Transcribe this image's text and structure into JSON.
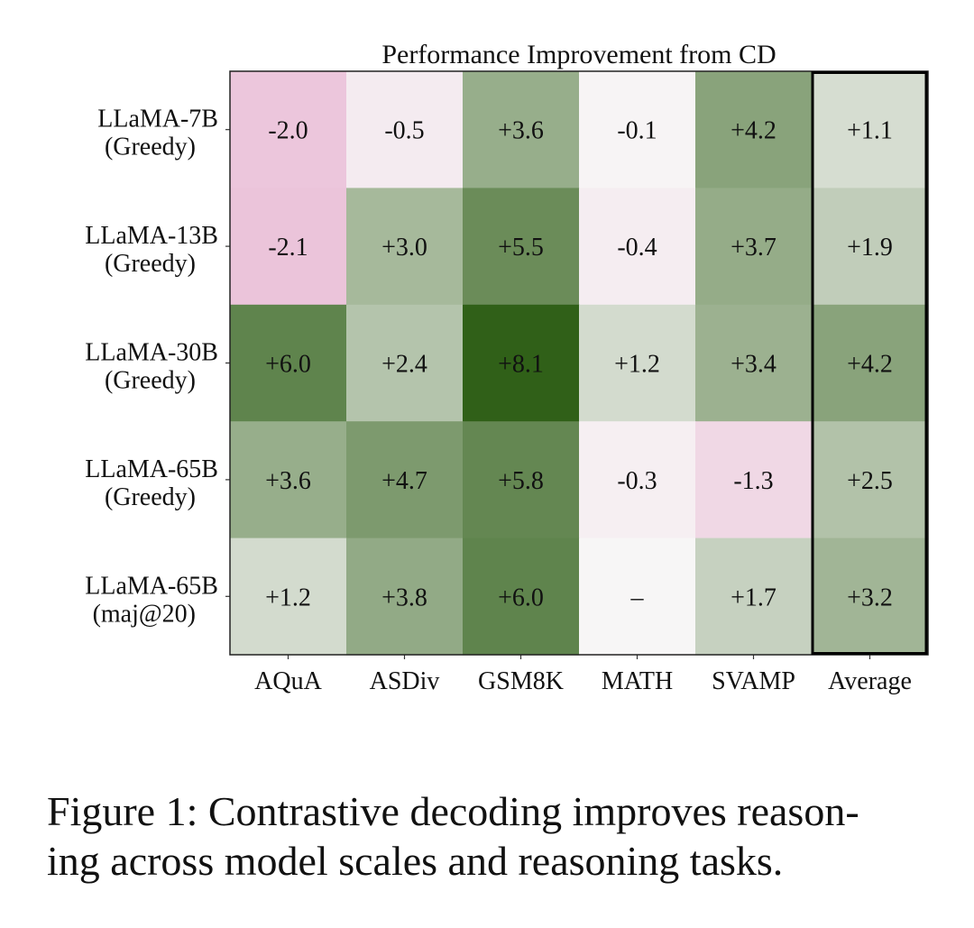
{
  "chart_data": {
    "type": "heatmap",
    "title": "Performance Improvement from CD",
    "columns": [
      "AQuA",
      "ASDiv",
      "GSM8K",
      "MATH",
      "SVAMP",
      "Average"
    ],
    "rows": [
      {
        "name": "LLaMA-7B",
        "setting": "(Greedy)"
      },
      {
        "name": "LLaMA-13B",
        "setting": "(Greedy)"
      },
      {
        "name": "LLaMA-30B",
        "setting": "(Greedy)"
      },
      {
        "name": "LLaMA-65B",
        "setting": "(Greedy)"
      },
      {
        "name": "LLaMA-65B",
        "setting": "(maj@20)"
      }
    ],
    "values": [
      [
        -2.0,
        -0.5,
        3.6,
        -0.1,
        4.2,
        1.1
      ],
      [
        -2.1,
        3.0,
        5.5,
        -0.4,
        3.7,
        1.9
      ],
      [
        6.0,
        2.4,
        8.1,
        1.2,
        3.4,
        4.2
      ],
      [
        3.6,
        4.7,
        5.8,
        -0.3,
        -1.3,
        2.5
      ],
      [
        1.2,
        3.8,
        6.0,
        null,
        1.7,
        3.2
      ]
    ],
    "labels": [
      [
        "-2.0",
        "-0.5",
        "+3.6",
        "-0.1",
        "+4.2",
        "+1.1"
      ],
      [
        "-2.1",
        "+3.0",
        "+5.5",
        "-0.4",
        "+3.7",
        "+1.9"
      ],
      [
        "+6.0",
        "+2.4",
        "+8.1",
        "+1.2",
        "+3.4",
        "+4.2"
      ],
      [
        "+3.6",
        "+4.7",
        "+5.8",
        "-0.3",
        "-1.3",
        "+2.5"
      ],
      [
        "+1.2",
        "+3.8",
        "+6.0",
        "–",
        "+1.7",
        "+3.2"
      ]
    ],
    "highlighted_column": "Average",
    "colormap": "PiYG (diverging, pink = negative, green = positive)",
    "value_range": [
      -8.1,
      8.1
    ],
    "xlabel": "",
    "ylabel": ""
  },
  "caption": {
    "line1": "Figure 1: Contrastive decoding improves reason-",
    "line2": "ing across model scales and reasoning tasks."
  }
}
